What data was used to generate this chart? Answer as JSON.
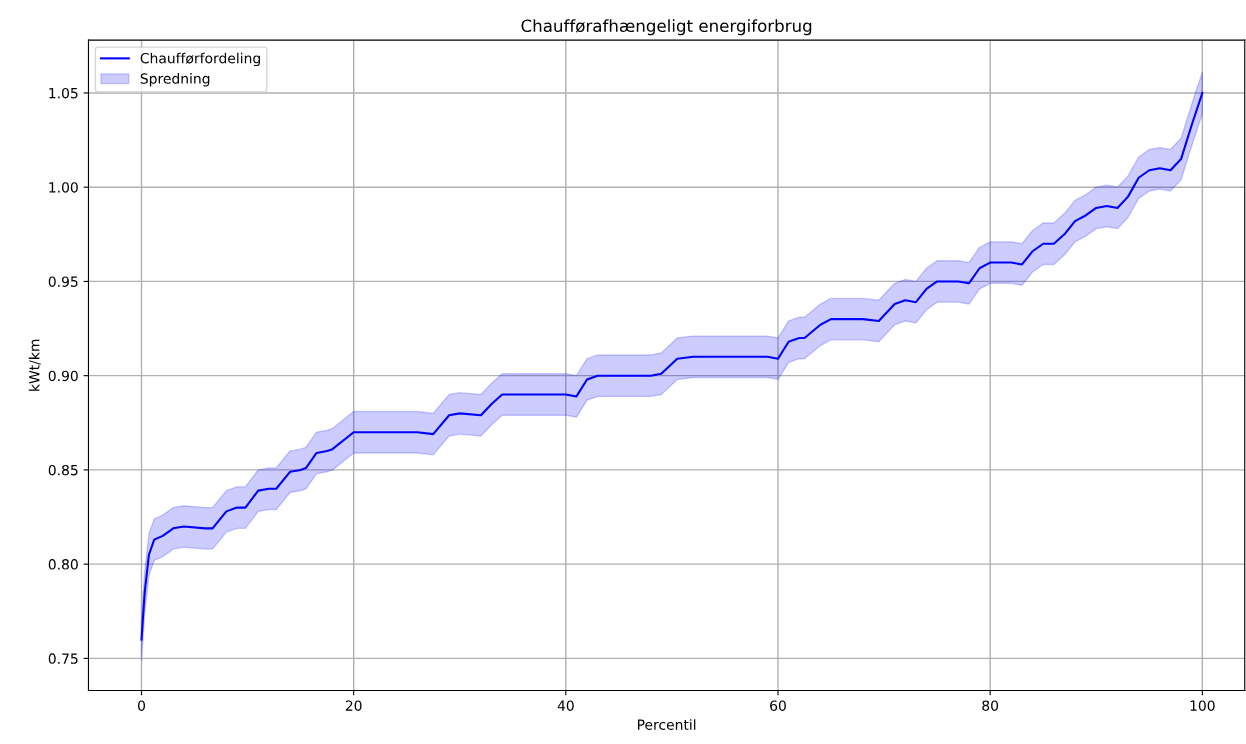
{
  "chart_data": {
    "type": "line",
    "title": "Chaufførafhængeligt energiforbrug",
    "xlabel": "Percentil",
    "ylabel": "kWt/km",
    "x": [
      0,
      0.3,
      0.7,
      1.2,
      2,
      3,
      4,
      6,
      6.7,
      8,
      9,
      9.8,
      11,
      12,
      12.7,
      14,
      15,
      15.5,
      16.5,
      17.5,
      18,
      20,
      22,
      26,
      27.5,
      29,
      30,
      32,
      33,
      34,
      36,
      40,
      41,
      42,
      43,
      46,
      48,
      49,
      50.5,
      52,
      56,
      59,
      60,
      61,
      62,
      62.5,
      64,
      65,
      68,
      69.5,
      71,
      72,
      73,
      74,
      75,
      77,
      78,
      79,
      80,
      82,
      83,
      84,
      85,
      86,
      87,
      88,
      89,
      90,
      91,
      92,
      93,
      94,
      95,
      96,
      97,
      98,
      99,
      100
    ],
    "series": [
      {
        "name": "Chaufførfordeling",
        "color": "#0000ff",
        "values": [
          0.76,
          0.785,
          0.805,
          0.813,
          0.815,
          0.819,
          0.82,
          0.819,
          0.819,
          0.828,
          0.83,
          0.83,
          0.839,
          0.84,
          0.84,
          0.849,
          0.85,
          0.851,
          0.859,
          0.86,
          0.861,
          0.87,
          0.87,
          0.87,
          0.869,
          0.879,
          0.88,
          0.879,
          0.885,
          0.89,
          0.89,
          0.89,
          0.889,
          0.898,
          0.9,
          0.9,
          0.9,
          0.901,
          0.909,
          0.91,
          0.91,
          0.91,
          0.909,
          0.918,
          0.92,
          0.92,
          0.927,
          0.93,
          0.93,
          0.929,
          0.938,
          0.94,
          0.939,
          0.946,
          0.95,
          0.95,
          0.949,
          0.957,
          0.96,
          0.96,
          0.959,
          0.966,
          0.97,
          0.97,
          0.975,
          0.982,
          0.985,
          0.989,
          0.99,
          0.989,
          0.995,
          1.005,
          1.009,
          1.01,
          1.009,
          1.015,
          1.033,
          1.05
        ],
        "lower": [
          0.749,
          0.774,
          0.794,
          0.802,
          0.804,
          0.808,
          0.809,
          0.808,
          0.808,
          0.817,
          0.819,
          0.819,
          0.828,
          0.829,
          0.829,
          0.838,
          0.839,
          0.84,
          0.848,
          0.849,
          0.85,
          0.859,
          0.859,
          0.859,
          0.858,
          0.868,
          0.869,
          0.868,
          0.874,
          0.879,
          0.879,
          0.879,
          0.878,
          0.887,
          0.889,
          0.889,
          0.889,
          0.89,
          0.898,
          0.899,
          0.899,
          0.899,
          0.898,
          0.907,
          0.909,
          0.909,
          0.916,
          0.919,
          0.919,
          0.918,
          0.927,
          0.929,
          0.928,
          0.935,
          0.939,
          0.939,
          0.938,
          0.946,
          0.949,
          0.949,
          0.948,
          0.955,
          0.959,
          0.959,
          0.964,
          0.971,
          0.974,
          0.978,
          0.979,
          0.978,
          0.984,
          0.994,
          0.998,
          0.999,
          0.998,
          1.004,
          1.022,
          1.039
        ],
        "upper": [
          0.771,
          0.796,
          0.816,
          0.824,
          0.826,
          0.83,
          0.831,
          0.83,
          0.83,
          0.839,
          0.841,
          0.841,
          0.85,
          0.851,
          0.851,
          0.86,
          0.861,
          0.862,
          0.87,
          0.871,
          0.872,
          0.881,
          0.881,
          0.881,
          0.88,
          0.89,
          0.891,
          0.89,
          0.896,
          0.901,
          0.901,
          0.901,
          0.9,
          0.909,
          0.911,
          0.911,
          0.911,
          0.912,
          0.92,
          0.921,
          0.921,
          0.921,
          0.92,
          0.929,
          0.931,
          0.931,
          0.938,
          0.941,
          0.941,
          0.94,
          0.949,
          0.951,
          0.95,
          0.957,
          0.961,
          0.961,
          0.96,
          0.968,
          0.971,
          0.971,
          0.97,
          0.977,
          0.981,
          0.981,
          0.986,
          0.993,
          0.996,
          1.0,
          1.001,
          1.0,
          1.006,
          1.016,
          1.02,
          1.021,
          1.02,
          1.026,
          1.044,
          1.061
        ]
      }
    ],
    "xlim": [
      -5,
      104
    ],
    "ylim": [
      0.733,
      1.078
    ],
    "xticks": [
      0,
      20,
      40,
      60,
      80,
      100
    ],
    "yticks": [
      {
        "value": 0.75,
        "label": "0.75"
      },
      {
        "value": 0.8,
        "label": "0.80"
      },
      {
        "value": 0.85,
        "label": "0.85"
      },
      {
        "value": 0.9,
        "label": "0.90"
      },
      {
        "value": 0.95,
        "label": "0.95"
      },
      {
        "value": 1.0,
        "label": "1.00"
      },
      {
        "value": 1.05,
        "label": "1.05"
      }
    ],
    "annotations": [
      "Spredning"
    ],
    "grid": true,
    "legend": "top left"
  }
}
